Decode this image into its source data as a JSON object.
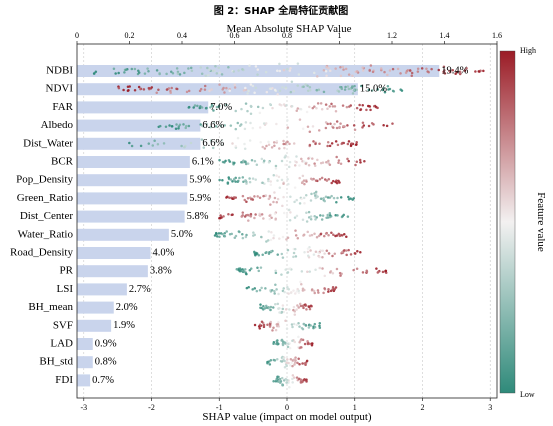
{
  "title": "图 2：SHAP 全局特征贡献图",
  "chart_data": {
    "type": "beeswarm_bar",
    "top_axis": {
      "label": "Mean Absolute SHAP Value",
      "ticks": [
        "0",
        "0.2",
        "0.4",
        "0.6",
        "0.8",
        "1",
        "1.2",
        "1.4",
        "1.6"
      ],
      "range": [
        0,
        1.6
      ]
    },
    "bottom_axis": {
      "label": "SHAP value (impact on model output)",
      "ticks": [
        "-3",
        "-2",
        "-1",
        "0",
        "1",
        "2",
        "3"
      ],
      "range": [
        -3.1,
        3.1
      ]
    },
    "colorbar": {
      "label": "Feature value",
      "high": "High",
      "low": "Low",
      "high_color": "#9b1c26",
      "mid_color": "#f3f1f1",
      "low_color": "#2f8a7a"
    },
    "bar_color": "#c9d4ec",
    "features": [
      {
        "name": "NDBI",
        "mean_abs": 1.38,
        "pct": "19.4%",
        "shap_min": -2.9,
        "shap_max": 3.0,
        "direction": 1
      },
      {
        "name": "NDVI",
        "mean_abs": 1.07,
        "pct": "15.0%",
        "shap_min": -2.5,
        "shap_max": 1.7,
        "direction": -1
      },
      {
        "name": "FAR",
        "mean_abs": 0.5,
        "pct": "7.0%",
        "shap_min": -1.5,
        "shap_max": 1.4,
        "direction": 1
      },
      {
        "name": "Albedo",
        "mean_abs": 0.47,
        "pct": "6.6%",
        "shap_min": -1.9,
        "shap_max": 1.6,
        "direction": 1
      },
      {
        "name": "Dist_Water",
        "mean_abs": 0.47,
        "pct": "6.6%",
        "shap_min": -2.4,
        "shap_max": 1.1,
        "direction": 1
      },
      {
        "name": "BCR",
        "mean_abs": 0.43,
        "pct": "6.1%",
        "shap_min": -1.0,
        "shap_max": 1.2,
        "direction": 1
      },
      {
        "name": "Pop_Density",
        "mean_abs": 0.42,
        "pct": "5.9%",
        "shap_min": -1.0,
        "shap_max": 0.8,
        "direction": 1
      },
      {
        "name": "Green_Ratio",
        "mean_abs": 0.42,
        "pct": "5.9%",
        "shap_min": -0.9,
        "shap_max": 1.0,
        "direction": -1
      },
      {
        "name": "Dist_Center",
        "mean_abs": 0.41,
        "pct": "5.8%",
        "shap_min": -1.0,
        "shap_max": 0.9,
        "direction": -1
      },
      {
        "name": "Water_Ratio",
        "mean_abs": 0.35,
        "pct": "5.0%",
        "shap_min": -1.1,
        "shap_max": 0.9,
        "direction": 1
      },
      {
        "name": "Road_Density",
        "mean_abs": 0.28,
        "pct": "4.0%",
        "shap_min": -0.5,
        "shap_max": 1.1,
        "direction": 1
      },
      {
        "name": "PR",
        "mean_abs": 0.27,
        "pct": "3.8%",
        "shap_min": -0.8,
        "shap_max": 1.5,
        "direction": 1
      },
      {
        "name": "LSI",
        "mean_abs": 0.19,
        "pct": "2.7%",
        "shap_min": -0.6,
        "shap_max": 0.8,
        "direction": 1
      },
      {
        "name": "BH_mean",
        "mean_abs": 0.14,
        "pct": "2.0%",
        "shap_min": -0.4,
        "shap_max": 0.4,
        "direction": 1
      },
      {
        "name": "SVF",
        "mean_abs": 0.13,
        "pct": "1.9%",
        "shap_min": -0.5,
        "shap_max": 0.5,
        "direction": -1
      },
      {
        "name": "LAD",
        "mean_abs": 0.06,
        "pct": "0.9%",
        "shap_min": -0.2,
        "shap_max": 0.4,
        "direction": 1
      },
      {
        "name": "BH_std",
        "mean_abs": 0.06,
        "pct": "0.8%",
        "shap_min": -0.3,
        "shap_max": 0.3,
        "direction": 1
      },
      {
        "name": "FDI",
        "mean_abs": 0.05,
        "pct": "0.7%",
        "shap_min": -0.2,
        "shap_max": 0.3,
        "direction": 1
      }
    ]
  }
}
